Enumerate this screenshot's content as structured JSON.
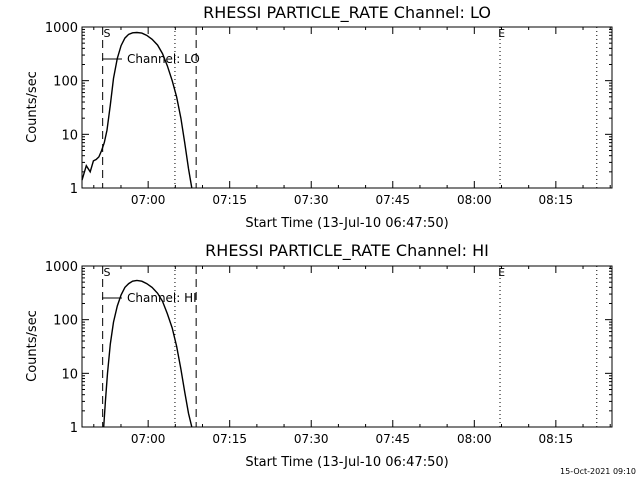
{
  "footer": {
    "timestamp": "15-Oct-2021 09:10"
  },
  "colors": {
    "background": "#ffffff",
    "foreground": "#000000"
  },
  "chart_data": [
    {
      "type": "line",
      "title": "RHESSI PARTICLE_RATE Channel: LO",
      "xlabel": "Start Time (13-Jul-10 06:47:50)",
      "ylabel": "Counts/sec",
      "yscale": "log",
      "xlim_minutes": [
        0,
        97.5
      ],
      "ylim": [
        1,
        1000
      ],
      "x_ticks": [
        {
          "minutes": 12.17,
          "label": "07:00"
        },
        {
          "minutes": 27.17,
          "label": "07:15"
        },
        {
          "minutes": 42.17,
          "label": "07:30"
        },
        {
          "minutes": 57.17,
          "label": "07:45"
        },
        {
          "minutes": 72.17,
          "label": "08:00"
        },
        {
          "minutes": 87.17,
          "label": "08:15"
        }
      ],
      "y_ticks": [
        {
          "value": 1,
          "label": "1"
        },
        {
          "value": 10,
          "label": "10"
        },
        {
          "value": 100,
          "label": "100"
        },
        {
          "value": 1000,
          "label": "1000"
        }
      ],
      "dashed_lines_minutes": [
        3.8,
        21.0
      ],
      "dotted_lines_minutes": [
        17.1,
        76.9,
        94.7
      ],
      "markers": [
        {
          "text": "S",
          "minutes": 4.6
        },
        {
          "text": "E",
          "minutes": 77.2
        }
      ],
      "legend": {
        "label": "Channel: LO",
        "placement": "top-left"
      },
      "series": [
        {
          "name": "Channel: LO",
          "x_minutes": [
            0.0,
            0.8,
            1.5,
            2.1,
            2.6,
            3.1,
            3.6,
            4.1,
            4.6,
            5.2,
            5.8,
            6.5,
            7.2,
            7.9,
            8.6,
            9.3,
            10.1,
            11.0,
            11.9,
            12.9,
            13.9,
            14.8,
            15.7,
            16.6,
            17.4,
            18.2,
            18.9,
            19.6,
            20.2
          ],
          "values": [
            1.4,
            2.6,
            2.0,
            3.2,
            3.4,
            3.8,
            5.0,
            7.0,
            12,
            35,
            110,
            260,
            450,
            620,
            730,
            780,
            790,
            770,
            700,
            590,
            460,
            320,
            190,
            100,
            50,
            20,
            7,
            2.3,
            1.0
          ]
        }
      ]
    },
    {
      "type": "line",
      "title": "RHESSI PARTICLE_RATE Channel: HI",
      "xlabel": "Start Time (13-Jul-10 06:47:50)",
      "ylabel": "Counts/sec",
      "yscale": "log",
      "xlim_minutes": [
        0,
        97.5
      ],
      "ylim": [
        1,
        1000
      ],
      "x_ticks": [
        {
          "minutes": 12.17,
          "label": "07:00"
        },
        {
          "minutes": 27.17,
          "label": "07:15"
        },
        {
          "minutes": 42.17,
          "label": "07:30"
        },
        {
          "minutes": 57.17,
          "label": "07:45"
        },
        {
          "minutes": 72.17,
          "label": "08:00"
        },
        {
          "minutes": 87.17,
          "label": "08:15"
        }
      ],
      "y_ticks": [
        {
          "value": 1,
          "label": "1"
        },
        {
          "value": 10,
          "label": "10"
        },
        {
          "value": 100,
          "label": "100"
        },
        {
          "value": 1000,
          "label": "1000"
        }
      ],
      "dashed_lines_minutes": [
        3.8,
        21.0
      ],
      "dotted_lines_minutes": [
        17.1,
        76.9,
        94.7
      ],
      "markers": [
        {
          "text": "S",
          "minutes": 4.6
        },
        {
          "text": "E",
          "minutes": 77.2
        }
      ],
      "legend": {
        "label": "Channel: HI",
        "placement": "top-left"
      },
      "series": [
        {
          "name": "Channel: HI",
          "x_minutes": [
            4.0,
            4.3,
            4.7,
            5.2,
            5.8,
            6.5,
            7.2,
            7.9,
            8.6,
            9.3,
            10.1,
            11.0,
            11.9,
            12.9,
            13.9,
            14.8,
            15.7,
            16.6,
            17.4,
            18.2,
            18.9,
            19.6,
            20.2
          ],
          "values": [
            1.0,
            3.0,
            10,
            35,
            90,
            180,
            290,
            400,
            470,
            520,
            540,
            520,
            470,
            400,
            310,
            220,
            130,
            70,
            32,
            12,
            4.5,
            1.8,
            1.0
          ]
        }
      ]
    }
  ]
}
